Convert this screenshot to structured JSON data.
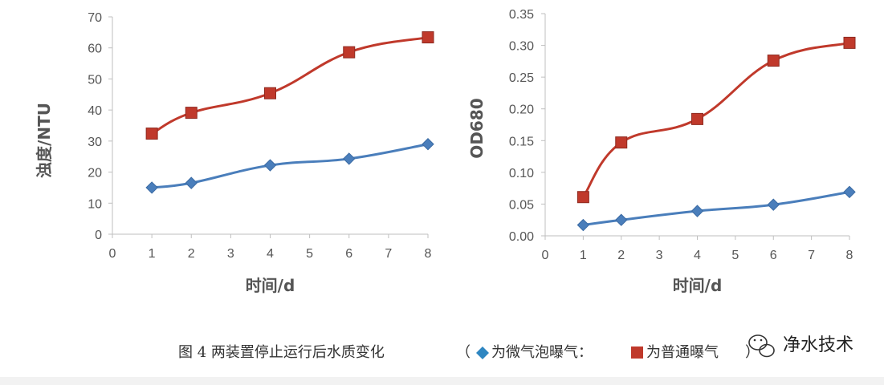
{
  "figure": {
    "caption_prefix": "图 4 两装置停止运行后水质变化",
    "caption_open": "（",
    "caption_legend_1": "为微气泡曝气：",
    "caption_legend_2": "为普通曝气",
    "caption_close": "）",
    "watermark": "净水技术",
    "legend_icons": [
      "diamond-marker",
      "square-marker"
    ]
  },
  "chart_data": [
    {
      "type": "line",
      "title": "",
      "xlabel": "时间/d",
      "ylabel": "浊度/NTU",
      "xlim": [
        0,
        8
      ],
      "ylim": [
        0,
        70
      ],
      "xticks": [
        0,
        1,
        2,
        3,
        4,
        5,
        6,
        7,
        8
      ],
      "yticks": [
        0,
        10,
        20,
        30,
        40,
        50,
        60,
        70
      ],
      "ytick_labels": [
        "0",
        "10",
        "20",
        "30",
        "40",
        "50",
        "60",
        "70"
      ],
      "grid": false,
      "series": [
        {
          "name": "微气泡曝气",
          "marker": "diamond",
          "color": "#4a7ebb",
          "x": [
            1,
            2,
            4,
            6,
            8
          ],
          "y": [
            15,
            16.5,
            22.2,
            24.3,
            29
          ]
        },
        {
          "name": "普通曝气",
          "marker": "square",
          "color": "#c0392b",
          "x": [
            1,
            2,
            4,
            6,
            8
          ],
          "y": [
            32.4,
            39.1,
            45.4,
            58.6,
            63.4
          ]
        }
      ]
    },
    {
      "type": "line",
      "title": "",
      "xlabel": "时间/d",
      "ylabel": "OD680",
      "xlim": [
        0,
        8
      ],
      "ylim": [
        0,
        0.35
      ],
      "xticks": [
        0,
        1,
        2,
        3,
        4,
        5,
        6,
        7,
        8
      ],
      "yticks": [
        0,
        0.05,
        0.1,
        0.15,
        0.2,
        0.25,
        0.3,
        0.35
      ],
      "ytick_labels": [
        "0.00",
        "0.05",
        "0.10",
        "0.15",
        "0.20",
        "0.25",
        "0.30",
        "0.35"
      ],
      "grid": false,
      "series": [
        {
          "name": "微气泡曝气",
          "marker": "diamond",
          "color": "#4a7ebb",
          "x": [
            1,
            2,
            4,
            6,
            8
          ],
          "y": [
            0.017,
            0.025,
            0.039,
            0.049,
            0.069
          ]
        },
        {
          "name": "普通曝气",
          "marker": "square",
          "color": "#c0392b",
          "x": [
            1,
            2,
            4,
            6,
            8
          ],
          "y": [
            0.061,
            0.147,
            0.184,
            0.276,
            0.304
          ]
        }
      ]
    }
  ]
}
